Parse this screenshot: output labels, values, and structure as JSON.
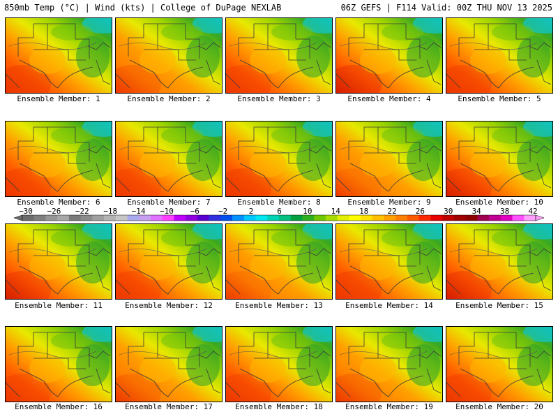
{
  "header": {
    "left": "850mb Temp (°C) | Wind (kts) | College of DuPage NEXLAB",
    "right": "06Z GEFS | F114 Valid: 00Z THU NOV 13 2025"
  },
  "colorbar": {
    "labels": [
      "-30",
      "-26",
      "-22",
      "-18",
      "-14",
      "-10",
      "-6",
      "-2",
      "2",
      "6",
      "10",
      "14",
      "18",
      "22",
      "26",
      "30",
      "34",
      "38",
      "42"
    ],
    "colors": [
      "#6c6c6c",
      "#7f7f7f",
      "#979797",
      "#a8a8a8",
      "#7a7a7a",
      "#8b8b8b",
      "#a0a0a0",
      "#b4b4b4",
      "#c6c6c6",
      "#aaaaee",
      "#c8a0f0",
      "#e070ff",
      "#ff40ff",
      "#c000ff",
      "#9000e0",
      "#5a00d0",
      "#3030e0",
      "#0050f0",
      "#0090ff",
      "#00c8ff",
      "#00e6ee",
      "#00d2b4",
      "#00c080",
      "#00a040",
      "#30b020",
      "#70c800",
      "#a8dc00",
      "#e0f000",
      "#ffff00",
      "#ffe000",
      "#ffc000",
      "#ffa000",
      "#ff8000",
      "#ff5a00",
      "#ff2800",
      "#e60000",
      "#c00000",
      "#a00000",
      "#8c0000",
      "#a00050",
      "#c00090",
      "#e000c0",
      "#ff50ff",
      "#ffa0ff"
    ]
  },
  "panels": [
    {
      "label": "Ensemble Member: 1",
      "warmth": 0.78
    },
    {
      "label": "Ensemble Member: 2",
      "warmth": 0.7
    },
    {
      "label": "Ensemble Member: 3",
      "warmth": 0.72
    },
    {
      "label": "Ensemble Member: 4",
      "warmth": 0.85
    },
    {
      "label": "Ensemble Member: 5",
      "warmth": 0.75
    },
    {
      "label": "Ensemble Member: 6",
      "warmth": 0.74
    },
    {
      "label": "Ensemble Member: 7",
      "warmth": 0.72
    },
    {
      "label": "Ensemble Member: 8",
      "warmth": 0.78
    },
    {
      "label": "Ensemble Member: 9",
      "warmth": 0.62
    },
    {
      "label": "Ensemble Member: 10",
      "warmth": 0.8
    },
    {
      "label": "Ensemble Member: 11",
      "warmth": 0.8
    },
    {
      "label": "Ensemble Member: 12",
      "warmth": 0.72
    },
    {
      "label": "Ensemble Member: 13",
      "warmth": 0.62
    },
    {
      "label": "Ensemble Member: 14",
      "warmth": 0.75
    },
    {
      "label": "Ensemble Member: 15",
      "warmth": 0.82
    },
    {
      "label": "Ensemble Member: 16",
      "warmth": 0.72
    },
    {
      "label": "Ensemble Member: 17",
      "warmth": 0.68
    },
    {
      "label": "Ensemble Member: 18",
      "warmth": 0.72
    },
    {
      "label": "Ensemble Member: 19",
      "warmth": 0.7
    },
    {
      "label": "Ensemble Member: 20",
      "warmth": 0.74
    }
  ]
}
